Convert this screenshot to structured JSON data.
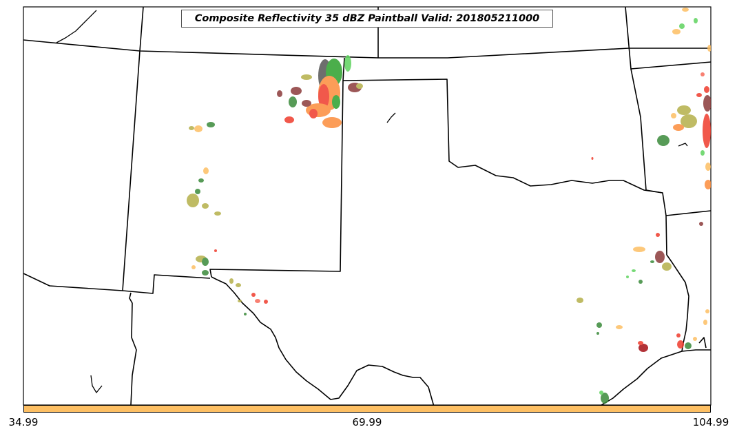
{
  "title": "Composite Reflectivity 35 dBZ Paintball Valid: 201805211000",
  "colorbar": {
    "color": "#fdbf63",
    "ticks": [
      "34.99",
      "69.99",
      "104.99"
    ]
  },
  "colors": {
    "light_orange": "#fdbf63",
    "dark_orange": "#fc8d3c",
    "red": "#ef3b2c",
    "salmon": "#f76a5a",
    "dark_red": "#a50f15",
    "maroon": "#8b3a3a",
    "green": "#2ca02c",
    "light_green": "#5fd35f",
    "dark_green": "#3a8a3a",
    "olive": "#b5b04a",
    "gray": "#555555",
    "border": "#000000"
  }
}
